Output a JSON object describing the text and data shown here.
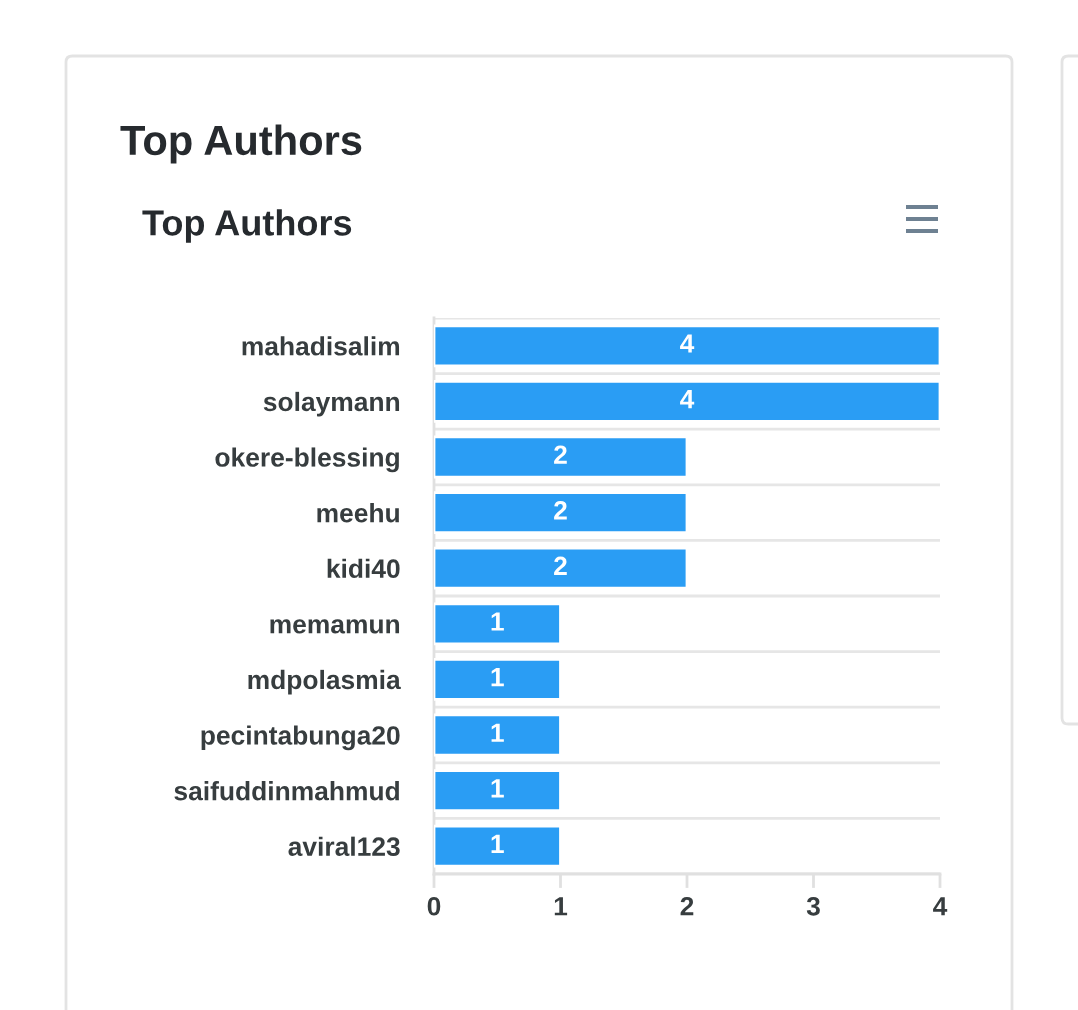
{
  "chart_data": {
    "type": "bar",
    "orientation": "horizontal",
    "title": "Top Authors",
    "subtitle": "Top Authors",
    "categories": [
      "mahadisalim",
      "solaymann",
      "okere-blessing",
      "meehu",
      "kidi40",
      "memamun",
      "mdpolasmia",
      "pecintabunga20",
      "saifuddinmahmud",
      "aviral123"
    ],
    "values": [
      4,
      4,
      2,
      2,
      2,
      1,
      1,
      1,
      1,
      1
    ],
    "color": "#2a9df4",
    "xlim": [
      0,
      4
    ],
    "xticks": [
      0,
      1,
      2,
      3,
      4
    ],
    "grid": "y",
    "data_labels": true
  }
}
